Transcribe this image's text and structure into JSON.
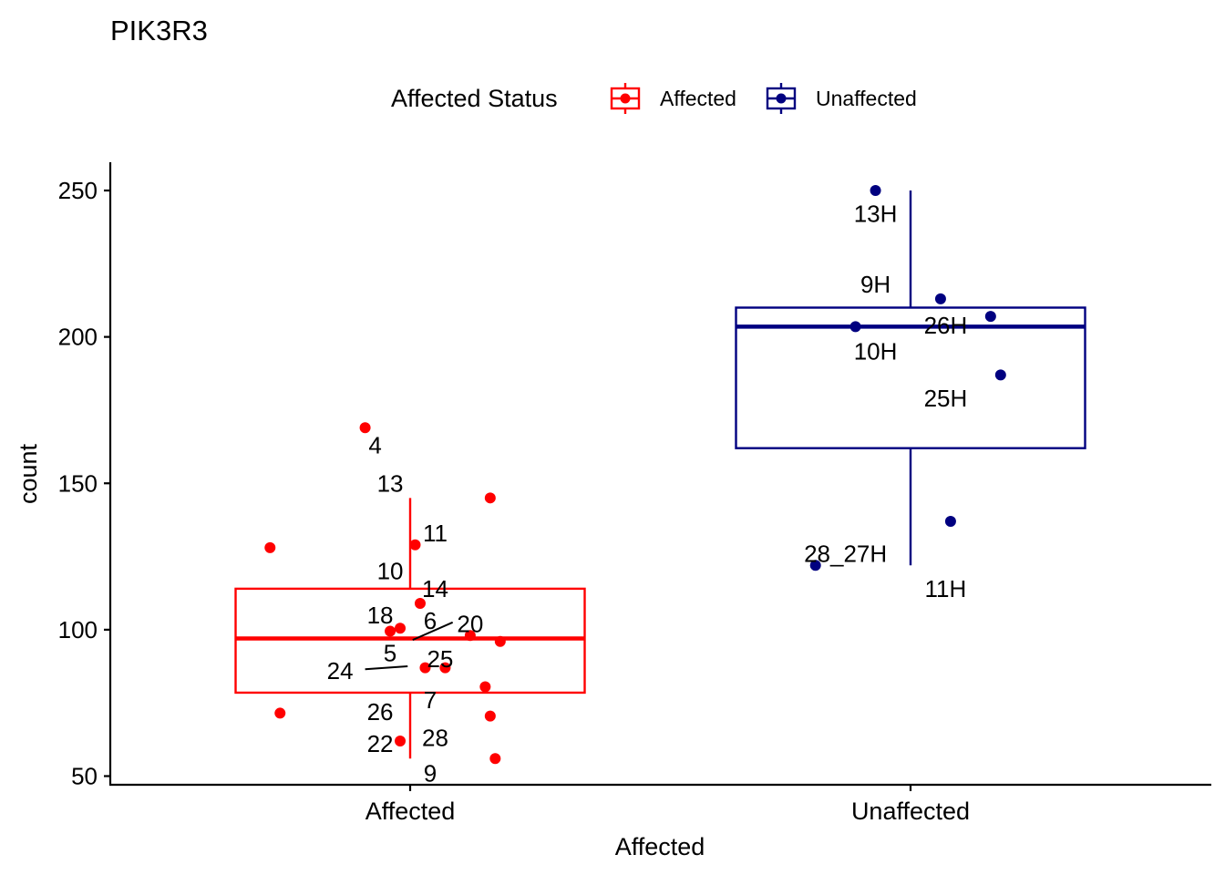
{
  "chart_data": {
    "type": "box",
    "title": "PIK3R3",
    "xlabel": "Affected",
    "ylabel": "count",
    "ylim": [
      45,
      260
    ],
    "yticks": [
      50,
      100,
      150,
      200,
      250
    ],
    "categories": [
      "Affected",
      "Unaffected"
    ],
    "legend": {
      "title": "Affected Status",
      "position": "top",
      "entries": [
        {
          "label": "Affected",
          "color": "#FF0000"
        },
        {
          "label": "Unaffected",
          "color": "#000080"
        }
      ]
    },
    "grid": false,
    "groups": [
      {
        "name": "Affected",
        "color": "#FF0000",
        "box": {
          "whisker_low": 56,
          "q1": 78.5,
          "median": 97,
          "q3": 114,
          "whisker_high": 145
        },
        "points": [
          {
            "x": 0.91,
            "y": 169,
            "label": "4",
            "lx": 0.93,
            "ly": 163
          },
          {
            "x": 1.16,
            "y": 145,
            "label": "13",
            "lx": 0.96,
            "ly": 150
          },
          {
            "x": 0.72,
            "y": 128,
            "label": "10",
            "lx": 0.96,
            "ly": 120
          },
          {
            "x": 1.01,
            "y": 129,
            "label": "11",
            "lx": 1.05,
            "ly": 133
          },
          {
            "x": 1.02,
            "y": 109,
            "label": "14",
            "lx": 1.05,
            "ly": 114
          },
          {
            "x": 0.96,
            "y": 99.5,
            "label": "18",
            "lx": 0.94,
            "ly": 105
          },
          {
            "x": 0.98,
            "y": 100.5,
            "label": "6",
            "lx": 1.04,
            "ly": 103
          },
          {
            "x": 1.12,
            "y": 98,
            "label": "20",
            "lx": 1.12,
            "ly": 102
          },
          {
            "x": 1.18,
            "y": 96,
            "label": "5",
            "lx": 0.96,
            "ly": 92
          },
          {
            "x": 1.03,
            "y": 87,
            "label": "25",
            "lx": 1.06,
            "ly": 90
          },
          {
            "x": 1.07,
            "y": 87,
            "label": "24",
            "lx": 0.86,
            "ly": 86
          },
          {
            "x": 1.15,
            "y": 80.5,
            "label": "7",
            "lx": 1.04,
            "ly": 76
          },
          {
            "x": 0.74,
            "y": 71.5,
            "label": "26",
            "lx": 0.94,
            "ly": 72
          },
          {
            "x": 1.16,
            "y": 70.5,
            "label": "28",
            "lx": 1.05,
            "ly": 63
          },
          {
            "x": 0.98,
            "y": 62,
            "label": "22",
            "lx": 0.94,
            "ly": 61
          },
          {
            "x": 1.17,
            "y": 56,
            "label": "9",
            "lx": 1.04,
            "ly": 51
          }
        ]
      },
      {
        "name": "Unaffected",
        "color": "#000080",
        "box": {
          "whisker_low": 122,
          "q1": 162,
          "median": 203.5,
          "q3": 210,
          "whisker_high": 250
        },
        "points": [
          {
            "x": 1.93,
            "y": 250,
            "label": "13H",
            "lx": 1.93,
            "ly": 242
          },
          {
            "x": 2.06,
            "y": 213,
            "label": "9H",
            "lx": 1.93,
            "ly": 218
          },
          {
            "x": 2.16,
            "y": 207,
            "label": "26H",
            "lx": 2.07,
            "ly": 204
          },
          {
            "x": 1.89,
            "y": 203.5,
            "label": "10H",
            "lx": 1.93,
            "ly": 195
          },
          {
            "x": 2.18,
            "y": 187,
            "label": "25H",
            "lx": 2.07,
            "ly": 179
          },
          {
            "x": 2.08,
            "y": 137,
            "label": "11H",
            "lx": 2.07,
            "ly": 114
          },
          {
            "x": 1.81,
            "y": 122,
            "label": "28_27H",
            "lx": 1.87,
            "ly": 126
          }
        ]
      }
    ]
  }
}
